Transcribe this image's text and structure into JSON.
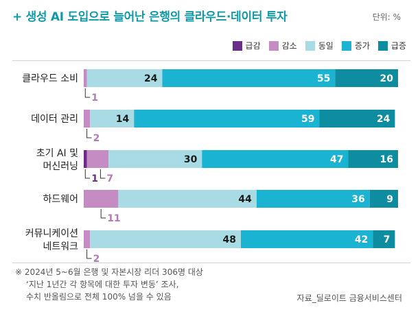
{
  "title": "+ 생성 AI 도입으로 늘어난 은행의 클라우드·데이터 투자",
  "unit": "단위: %",
  "legend": [
    {
      "label": "급감",
      "color": "#6b2d8a"
    },
    {
      "label": "감소",
      "color": "#c48cc3"
    },
    {
      "label": "동일",
      "color": "#a9dbe5"
    },
    {
      "label": "증가",
      "color": "#1ab3d1"
    },
    {
      "label": "급증",
      "color": "#0f8da0"
    }
  ],
  "chart_data": {
    "type": "bar",
    "orientation": "horizontal",
    "stacked": true,
    "title": "생성 AI 도입으로 늘어난 은행의 클라우드·데이터 투자",
    "unit": "%",
    "categories": [
      [
        "클라우드 소비"
      ],
      [
        "데이터 관리"
      ],
      [
        "초기 AI 및",
        "머신러닝"
      ],
      [
        "하드웨어"
      ],
      [
        "커뮤니케이션",
        "네트워크"
      ]
    ],
    "series": [
      {
        "name": "급감",
        "color": "#6b2d8a",
        "values": [
          0,
          0,
          1,
          0,
          0
        ]
      },
      {
        "name": "감소",
        "color": "#c48cc3",
        "values": [
          1,
          2,
          7,
          11,
          2
        ]
      },
      {
        "name": "동일",
        "color": "#a9dbe5",
        "values": [
          24,
          14,
          30,
          44,
          48
        ]
      },
      {
        "name": "증가",
        "color": "#1ab3d1",
        "values": [
          55,
          59,
          47,
          36,
          42
        ]
      },
      {
        "name": "급증",
        "color": "#0f8da0",
        "values": [
          20,
          24,
          16,
          9,
          7
        ]
      }
    ],
    "xlim": [
      0,
      100
    ]
  },
  "note": {
    "line1": "※ 2024년 5~6월 은행 및 자본시장 리더 306명 대상",
    "line2": "‘지난 1년간 각 항목에 대한 투자 변동’ 조사,",
    "line3": "수치 반올림으로 전체 100% 넘을 수 있음"
  },
  "source": "자료_딜로이트 금융서비스센터"
}
